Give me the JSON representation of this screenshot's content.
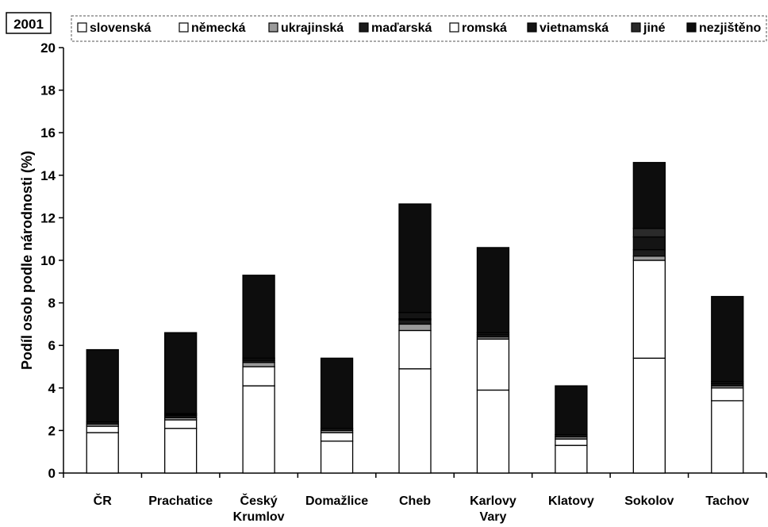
{
  "chart_data": {
    "type": "bar",
    "stacked": true,
    "year_label": "2001",
    "title": "",
    "xlabel": "",
    "ylabel": "Podíl osob podle národnosti (%)",
    "ylim": [
      0,
      20
    ],
    "yticks": [
      0,
      2,
      4,
      6,
      8,
      10,
      12,
      14,
      16,
      18,
      20
    ],
    "grid": false,
    "legend_position": "top",
    "categories": [
      [
        "ČR"
      ],
      [
        "Prachatice"
      ],
      [
        "Český",
        "Krumlov"
      ],
      [
        "Domažlice"
      ],
      [
        "Cheb"
      ],
      [
        "Karlovy",
        "Vary"
      ],
      [
        "Klatovy"
      ],
      [
        "Sokolov"
      ],
      [
        "Tachov"
      ]
    ],
    "series": [
      {
        "name": "slovenská",
        "color": "#ffffff",
        "values": [
          1.9,
          2.1,
          4.1,
          1.5,
          4.9,
          3.9,
          1.3,
          5.4,
          3.4
        ]
      },
      {
        "name": "německá",
        "color": "#ffffff",
        "values": [
          0.3,
          0.4,
          0.9,
          0.4,
          1.8,
          2.4,
          0.3,
          4.6,
          0.6
        ]
      },
      {
        "name": "ukrajinská",
        "color": "#9a9a9a",
        "values": [
          0.1,
          0.1,
          0.2,
          0.1,
          0.3,
          0.1,
          0.1,
          0.2,
          0.1
        ]
      },
      {
        "name": "maďarská",
        "color": "#1c1c1c",
        "values": [
          0.1,
          0.1,
          0.1,
          0.1,
          0.2,
          0.1,
          0.1,
          0.3,
          0.1
        ]
      },
      {
        "name": "romská",
        "color": "#ffffff",
        "values": [
          0.0,
          0.05,
          0.0,
          0.0,
          0.05,
          0.0,
          0.0,
          0.0,
          0.0
        ]
      },
      {
        "name": "vietnamská",
        "color": "#141414",
        "values": [
          0.0,
          0.05,
          0.1,
          0.0,
          0.3,
          0.1,
          0.0,
          0.6,
          0.1
        ]
      },
      {
        "name": "jiné",
        "color": "#2a2a2a",
        "values": [
          0.0,
          0.0,
          0.0,
          0.0,
          0.0,
          0.0,
          0.0,
          0.4,
          0.0
        ]
      },
      {
        "name": "nezjištěno",
        "color": "#0d0d0d",
        "values": [
          3.4,
          3.8,
          3.9,
          3.3,
          5.1,
          4.0,
          2.3,
          3.1,
          4.0
        ]
      }
    ]
  }
}
